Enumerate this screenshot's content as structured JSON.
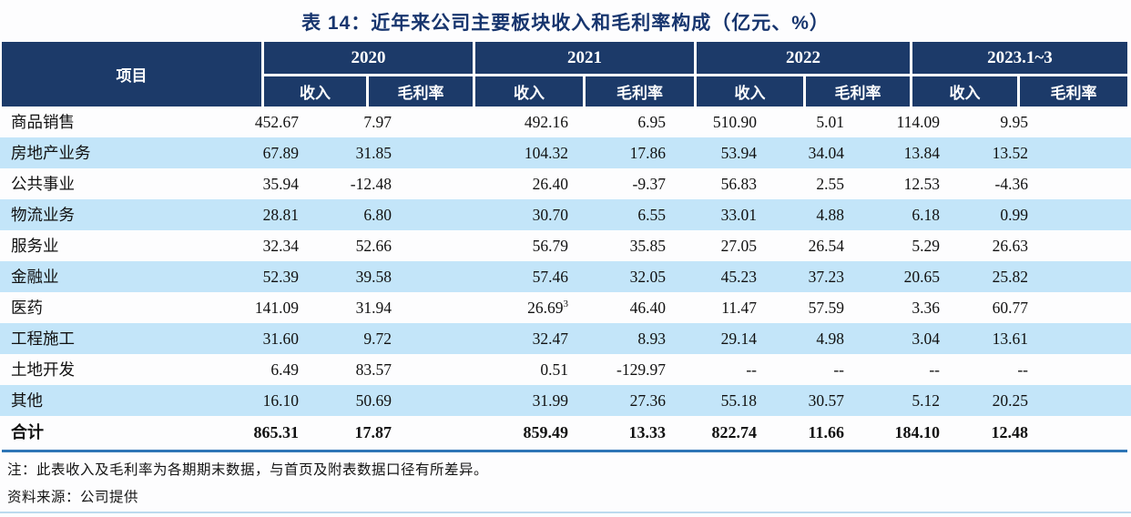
{
  "title": "表 14：近年来公司主要板块收入和毛利率构成（亿元、%）",
  "colors": {
    "header_bg": "#1c3a69",
    "row_band": "#c3e5f9",
    "total_rule": "#2e75b6",
    "title_color": "#17356e",
    "footer_line": "#bcdaee"
  },
  "table": {
    "item_header": "项目",
    "groups": [
      {
        "label": "2020"
      },
      {
        "label": "2021"
      },
      {
        "label": "2022"
      },
      {
        "label": "2023.1~3"
      }
    ],
    "sub_headers": [
      "收入",
      "毛利率",
      "收入",
      "毛利率",
      "收入",
      "毛利率",
      "收入",
      "毛利率"
    ],
    "rows": [
      {
        "label": "商品销售",
        "values": [
          "452.67",
          "7.97",
          "492.16",
          "6.95",
          "510.90",
          "5.01",
          "114.09",
          "9.95"
        ]
      },
      {
        "label": "房地产业务",
        "values": [
          "67.89",
          "31.85",
          "104.32",
          "17.86",
          "53.94",
          "34.04",
          "13.84",
          "13.52"
        ]
      },
      {
        "label": "公共事业",
        "values": [
          "35.94",
          "-12.48",
          "26.40",
          "-9.37",
          "56.83",
          "2.55",
          "12.53",
          "-4.36"
        ]
      },
      {
        "label": "物流业务",
        "values": [
          "28.81",
          "6.80",
          "30.70",
          "6.55",
          "33.01",
          "4.88",
          "6.18",
          "0.99"
        ]
      },
      {
        "label": "服务业",
        "values": [
          "32.34",
          "52.66",
          "56.79",
          "35.85",
          "27.05",
          "26.54",
          "5.29",
          "26.63"
        ]
      },
      {
        "label": "金融业",
        "values": [
          "52.39",
          "39.58",
          "57.46",
          "32.05",
          "45.23",
          "37.23",
          "20.65",
          "25.82"
        ]
      },
      {
        "label": "医药",
        "values": [
          "141.09",
          "31.94",
          "26.69",
          "46.40",
          "11.47",
          "57.59",
          "3.36",
          "60.77"
        ],
        "sup": {
          "2": "3"
        }
      },
      {
        "label": "工程施工",
        "values": [
          "31.60",
          "9.72",
          "32.47",
          "8.93",
          "29.14",
          "4.98",
          "3.04",
          "13.61"
        ]
      },
      {
        "label": "土地开发",
        "values": [
          "6.49",
          "83.57",
          "0.51",
          "-129.97",
          "--",
          "--",
          "--",
          "--"
        ]
      },
      {
        "label": "其他",
        "values": [
          "16.10",
          "50.69",
          "31.99",
          "27.36",
          "55.18",
          "30.57",
          "5.12",
          "20.25"
        ]
      }
    ],
    "total_row": {
      "label": "合计",
      "values": [
        "865.31",
        "17.87",
        "859.49",
        "13.33",
        "822.74",
        "11.66",
        "184.10",
        "12.48"
      ]
    }
  },
  "notes": {
    "note": "注：此表收入及毛利率为各期期末数据，与首页及附表数据口径有所差异。",
    "source": "资料来源：公司提供"
  }
}
